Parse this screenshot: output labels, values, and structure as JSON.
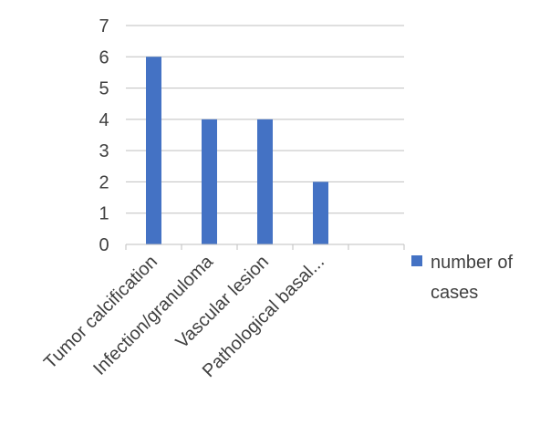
{
  "chart_data": {
    "type": "bar",
    "categories": [
      "Tumor calcification",
      "Infection/granuloma",
      "Vascular lesion",
      "Pathological basal...",
      ""
    ],
    "series": [
      {
        "name": "number of cases",
        "values": [
          6,
          4,
          4,
          2,
          null
        ]
      }
    ],
    "ylim": [
      0,
      7
    ],
    "yticks": [
      "0",
      "1",
      "2",
      "3",
      "4",
      "5",
      "6",
      "7"
    ],
    "grid": true,
    "legend_position": "right",
    "colors": {
      "bar": "#4472C4",
      "grid": "#BFBFBF",
      "axis": "#BFBFBF",
      "text": "#404040"
    }
  }
}
